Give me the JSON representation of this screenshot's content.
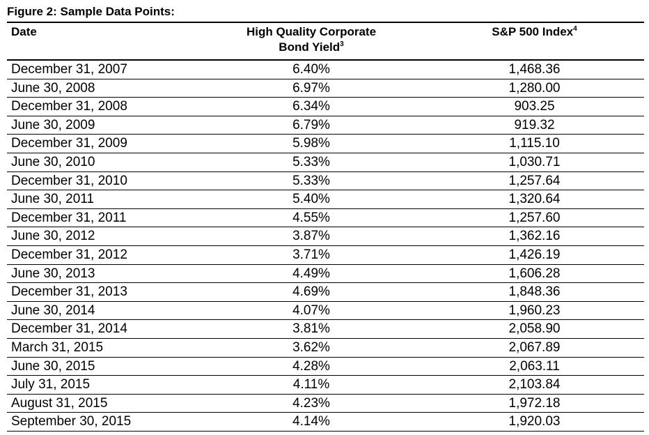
{
  "figure_title": "Figure 2: Sample Data Points:",
  "headers": {
    "date": "Date",
    "yield_line1": "High Quality Corporate",
    "yield_line2": "Bond Yield",
    "yield_footnote": "3",
    "sp": "S&P 500 Index",
    "sp_footnote": "4"
  },
  "rows": [
    {
      "date": "December 31, 2007",
      "yield": "6.40%",
      "sp": "1,468.36"
    },
    {
      "date": "June 30, 2008",
      "yield": "6.97%",
      "sp": "1,280.00"
    },
    {
      "date": "December 31, 2008",
      "yield": "6.34%",
      "sp": "903.25"
    },
    {
      "date": "June 30, 2009",
      "yield": "6.79%",
      "sp": "919.32"
    },
    {
      "date": "December 31, 2009",
      "yield": "5.98%",
      "sp": "1,115.10"
    },
    {
      "date": "June 30, 2010",
      "yield": "5.33%",
      "sp": "1,030.71"
    },
    {
      "date": "December 31, 2010",
      "yield": "5.33%",
      "sp": "1,257.64"
    },
    {
      "date": "June 30, 2011",
      "yield": "5.40%",
      "sp": "1,320.64"
    },
    {
      "date": "December 31, 2011",
      "yield": "4.55%",
      "sp": "1,257.60"
    },
    {
      "date": "June 30, 2012",
      "yield": "3.87%",
      "sp": "1,362.16"
    },
    {
      "date": "December 31, 2012",
      "yield": "3.71%",
      "sp": "1,426.19"
    },
    {
      "date": "June 30, 2013",
      "yield": "4.49%",
      "sp": "1,606.28"
    },
    {
      "date": "December 31, 2013",
      "yield": "4.69%",
      "sp": "1,848.36"
    },
    {
      "date": "June 30, 2014",
      "yield": "4.07%",
      "sp": "1,960.23"
    },
    {
      "date": "December 31, 2014",
      "yield": "3.81%",
      "sp": "2,058.90"
    },
    {
      "date": "March 31, 2015",
      "yield": "3.62%",
      "sp": "2,067.89"
    },
    {
      "date": "June 30, 2015",
      "yield": "4.28%",
      "sp": "2,063.11"
    },
    {
      "date": "July 31, 2015",
      "yield": "4.11%",
      "sp": "2,103.84"
    },
    {
      "date": "August 31, 2015",
      "yield": "4.23%",
      "sp": "1,972.18"
    },
    {
      "date": "September 30, 2015",
      "yield": "4.14%",
      "sp": "1,920.03"
    }
  ]
}
